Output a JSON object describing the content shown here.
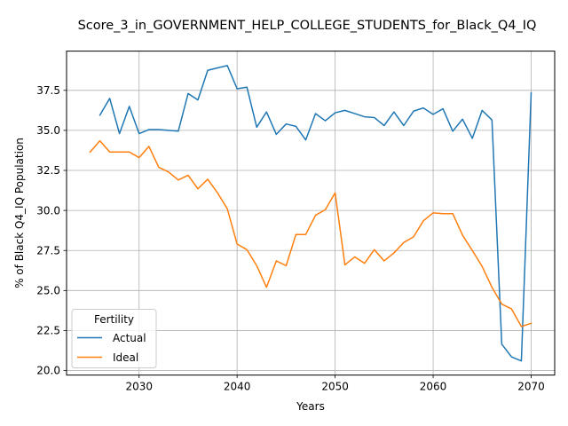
{
  "chart_data": {
    "type": "line",
    "title": "Score_3_in_GOVERNMENT_HELP_COLLEGE_STUDENTS_for_Black_Q4_IQ",
    "xlabel": "Years",
    "ylabel": "% of Black Q4_IQ Population",
    "xlim": [
      2022.6,
      2072.4
    ],
    "ylim": [
      19.72,
      39.95
    ],
    "xticks": [
      2030,
      2040,
      2050,
      2060,
      2070
    ],
    "yticks": [
      20.0,
      22.5,
      25.0,
      27.5,
      30.0,
      32.5,
      35.0,
      37.5
    ],
    "grid": true,
    "legend": {
      "title": "Fertility",
      "location": "lower-left"
    },
    "series": [
      {
        "name": "Actual",
        "color": "#1f77b4",
        "x": [
          2026,
          2027,
          2028,
          2029,
          2030,
          2031,
          2032,
          2033,
          2034,
          2035,
          2036,
          2037,
          2038,
          2039,
          2040,
          2041,
          2042,
          2043,
          2044,
          2045,
          2046,
          2047,
          2048,
          2049,
          2050,
          2051,
          2052,
          2053,
          2054,
          2055,
          2056,
          2057,
          2058,
          2059,
          2060,
          2061,
          2062,
          2063,
          2064,
          2065,
          2066,
          2067,
          2068,
          2069,
          2070
        ],
        "y": [
          35.95,
          37.0,
          34.8,
          36.5,
          34.8,
          35.05,
          35.05,
          35.0,
          34.95,
          37.3,
          36.9,
          38.75,
          38.9,
          39.05,
          37.6,
          37.7,
          35.2,
          36.15,
          34.75,
          35.4,
          35.25,
          34.4,
          36.05,
          35.6,
          36.1,
          36.25,
          36.05,
          35.85,
          35.8,
          35.3,
          36.15,
          35.3,
          36.2,
          36.4,
          36.0,
          36.35,
          34.95,
          35.7,
          34.5,
          36.25,
          35.65,
          21.65,
          20.85,
          20.6,
          37.35
        ]
      },
      {
        "name": "Ideal",
        "color": "#ff7f0e",
        "x": [
          2025,
          2026,
          2027,
          2028,
          2029,
          2030,
          2031,
          2032,
          2033,
          2034,
          2035,
          2036,
          2037,
          2038,
          2039,
          2040,
          2041,
          2042,
          2043,
          2044,
          2045,
          2046,
          2047,
          2048,
          2049,
          2050,
          2051,
          2052,
          2053,
          2054,
          2055,
          2056,
          2057,
          2058,
          2059,
          2060,
          2061,
          2062,
          2063,
          2064,
          2065,
          2066,
          2067,
          2068,
          2069,
          2070
        ],
        "y": [
          33.65,
          34.35,
          33.65,
          33.65,
          33.65,
          33.3,
          34.0,
          32.7,
          32.4,
          31.9,
          32.2,
          31.35,
          31.95,
          31.1,
          30.1,
          27.9,
          27.55,
          26.55,
          25.2,
          26.85,
          26.55,
          28.5,
          28.5,
          29.7,
          30.05,
          31.1,
          26.6,
          27.1,
          26.7,
          27.55,
          26.85,
          27.35,
          28.0,
          28.35,
          29.35,
          29.85,
          29.8,
          29.8,
          28.45,
          27.5,
          26.5,
          25.2,
          24.15,
          23.85,
          22.75,
          22.95
        ]
      }
    ]
  }
}
